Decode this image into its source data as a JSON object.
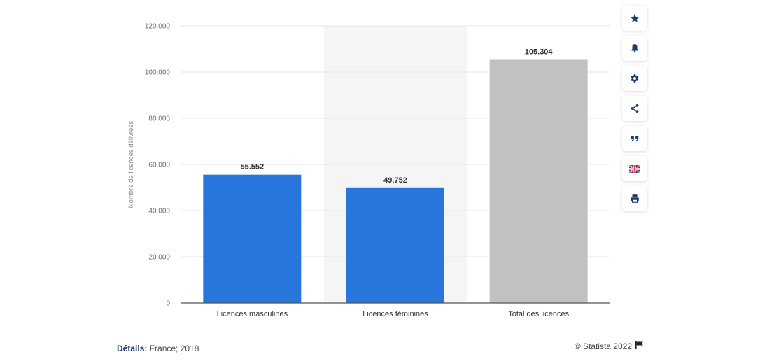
{
  "chart_data": {
    "type": "bar",
    "categories": [
      "Licences masculines",
      "Licences féminines",
      "Total des licences"
    ],
    "values": [
      55552,
      49752,
      105304
    ],
    "value_labels": [
      "55.552",
      "49.752",
      "105.304"
    ],
    "bar_colors": [
      "#2875dc",
      "#2875dc",
      "#c1c1c1"
    ],
    "highlighted_category": "Licences féminines",
    "ylabel": "Nombre de licences délivrées",
    "xlabel": "",
    "ylim": [
      0,
      120000
    ],
    "yticks": [
      0,
      20000,
      40000,
      60000,
      80000,
      100000,
      120000
    ],
    "ytick_labels": [
      "0",
      "20.000",
      "40.000",
      "60.000",
      "80.000",
      "100.000",
      "120.000"
    ],
    "grid": true
  },
  "toolbar": {
    "buttons": [
      {
        "name": "star-button",
        "icon": "star-icon"
      },
      {
        "name": "notification-button",
        "icon": "bell-icon"
      },
      {
        "name": "settings-button",
        "icon": "gear-icon"
      },
      {
        "name": "share-button",
        "icon": "share-icon"
      },
      {
        "name": "cite-button",
        "icon": "quote-icon"
      },
      {
        "name": "language-button",
        "icon": "uk-flag-icon"
      },
      {
        "name": "print-button",
        "icon": "printer-icon"
      }
    ]
  },
  "footer": {
    "details_label": "Détails:",
    "details_value": "France; 2018",
    "copyright": "© Statista 2022"
  },
  "colors": {
    "bar_primary": "#2875dc",
    "bar_total": "#c1c1c1",
    "highlight_band": "#f5f5f5",
    "grid": "#e6e6e6",
    "footer_label": "#1d3b66"
  }
}
